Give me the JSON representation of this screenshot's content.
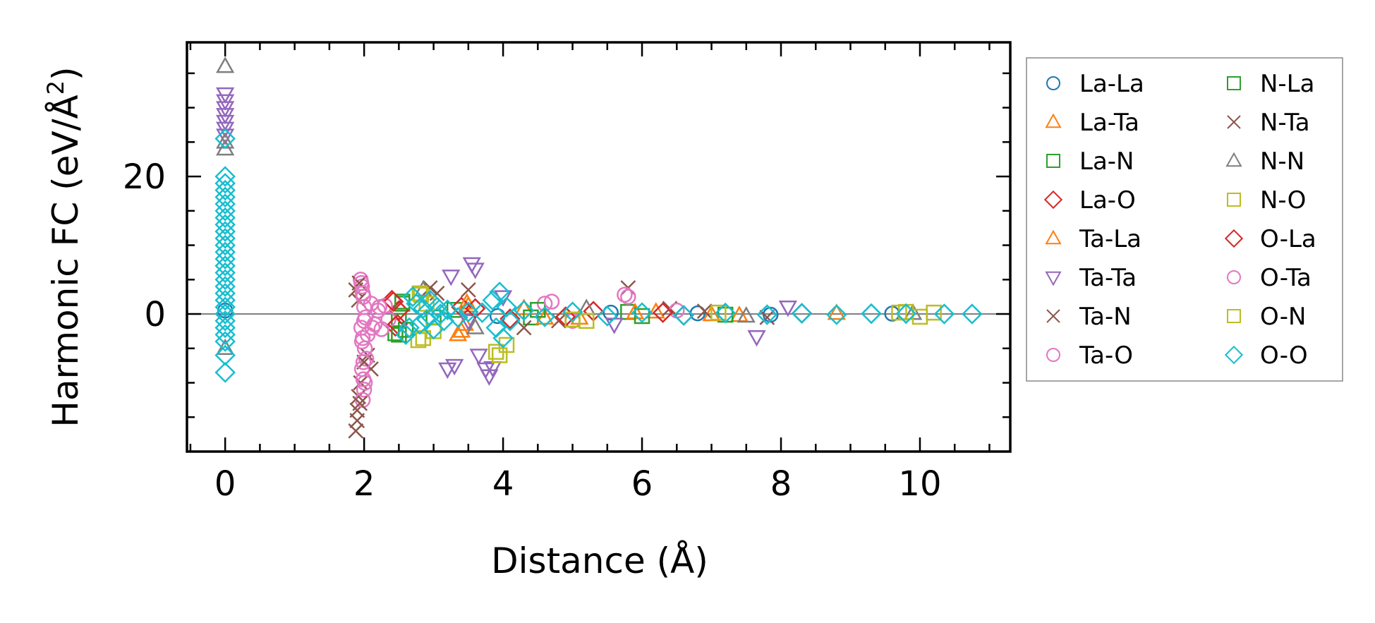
{
  "chart_data": {
    "type": "scatter",
    "title": "",
    "xlabel": "Distance (Å)",
    "ylabel_prefix": "Harmonic FC (eV/Å",
    "ylabel_exp": "2",
    "ylabel_suffix": ")",
    "xlim": [
      -0.55,
      11.3
    ],
    "ylim": [
      -20,
      39.5
    ],
    "xticks": [
      0,
      2,
      4,
      6,
      8,
      10
    ],
    "yticks": [
      0,
      20
    ],
    "xtick_labels": [
      "0",
      "2",
      "4",
      "6",
      "8",
      "10"
    ],
    "ytick_labels": [
      "0",
      "20"
    ],
    "xminor_step": 0.5,
    "yminor_step": 5,
    "hline_y": 0,
    "legend_position": "outside-right",
    "legend_columns": 2,
    "series": [
      {
        "name": "La-La",
        "marker": "circle",
        "color": "#1f77b4",
        "points": [
          [
            0,
            0.5
          ],
          [
            3.92,
            -0.3
          ],
          [
            5.55,
            0.2
          ],
          [
            6.8,
            0.1
          ],
          [
            7.85,
            -0.1
          ],
          [
            9.6,
            0.05
          ]
        ]
      },
      {
        "name": "La-Ta",
        "marker": "triangle-up",
        "color": "#ff7f0e",
        "points": [
          [
            3.35,
            -3.0
          ],
          [
            3.45,
            -1.5
          ],
          [
            3.5,
            1.2
          ],
          [
            4.3,
            0.8
          ],
          [
            5.1,
            -0.6
          ],
          [
            6.2,
            0.3
          ],
          [
            7.4,
            -0.2
          ],
          [
            8.8,
            0.1
          ]
        ]
      },
      {
        "name": "La-N",
        "marker": "square",
        "color": "#2ca02c",
        "points": [
          [
            2.45,
            -2.8
          ],
          [
            2.5,
            -1.0
          ],
          [
            2.55,
            1.5
          ],
          [
            2.6,
            -2.3
          ],
          [
            3.3,
            0.6
          ],
          [
            4.4,
            -0.5
          ],
          [
            5.8,
            0.3
          ],
          [
            7.2,
            -0.1
          ]
        ]
      },
      {
        "name": "La-O",
        "marker": "diamond",
        "color": "#d62728",
        "points": [
          [
            2.4,
            2.0
          ],
          [
            2.45,
            -1.8
          ],
          [
            2.5,
            0.5
          ],
          [
            3.4,
            1.0
          ],
          [
            4.1,
            -0.7
          ],
          [
            5.3,
            0.4
          ],
          [
            6.6,
            -0.2
          ],
          [
            8.3,
            0.1
          ]
        ]
      },
      {
        "name": "Ta-La",
        "marker": "triangle-up",
        "color": "#ff7f0e",
        "points": [
          [
            3.4,
            -2.5
          ],
          [
            3.48,
            1.6
          ],
          [
            4.6,
            -0.6
          ],
          [
            5.9,
            0.2
          ],
          [
            7.0,
            -0.1
          ]
        ]
      },
      {
        "name": "Ta-Ta",
        "marker": "triangle-down",
        "color": "#9467bd",
        "points": [
          [
            0,
            32
          ],
          [
            0,
            31
          ],
          [
            0,
            30
          ],
          [
            0,
            29
          ],
          [
            0,
            28
          ],
          [
            0,
            27
          ],
          [
            0,
            26
          ],
          [
            3.25,
            5.5
          ],
          [
            3.2,
            -8.0
          ],
          [
            3.3,
            -7.5
          ],
          [
            3.5,
            -1.0
          ],
          [
            3.55,
            7.3
          ],
          [
            3.6,
            6.5
          ],
          [
            3.65,
            -6.0
          ],
          [
            3.75,
            -8.0
          ],
          [
            3.8,
            -9.0
          ],
          [
            3.85,
            -7.8
          ],
          [
            4.0,
            2.5
          ],
          [
            5.6,
            -1.5
          ],
          [
            7.65,
            -3.3
          ],
          [
            8.1,
            1.0
          ]
        ]
      },
      {
        "name": "Ta-N",
        "marker": "x",
        "color": "#8c564b",
        "points": [
          [
            1.88,
            -17.0
          ],
          [
            1.9,
            -14.0
          ],
          [
            1.92,
            -12.0
          ],
          [
            1.95,
            -10.0
          ],
          [
            1.88,
            3.5
          ],
          [
            1.92,
            2.0
          ],
          [
            2.05,
            -6.0
          ],
          [
            2.1,
            -8.0
          ],
          [
            2.95,
            3.8
          ],
          [
            3.5,
            3.5
          ],
          [
            4.3,
            -2.0
          ],
          [
            5.8,
            3.8
          ],
          [
            6.4,
            0.8
          ],
          [
            7.8,
            -0.5
          ]
        ]
      },
      {
        "name": "Ta-O",
        "marker": "circle",
        "color": "#e377c2",
        "points": [
          [
            1.95,
            5.0
          ],
          [
            1.97,
            4.0
          ],
          [
            1.99,
            2.5
          ],
          [
            2.0,
            1.0
          ],
          [
            2.02,
            -0.5
          ],
          [
            1.96,
            -2.0
          ],
          [
            1.98,
            -3.5
          ],
          [
            2.01,
            -5.0
          ],
          [
            2.03,
            -6.5
          ],
          [
            1.97,
            -8.0
          ],
          [
            1.99,
            -9.5
          ],
          [
            2.0,
            -11.0
          ],
          [
            1.98,
            -12.5
          ],
          [
            2.05,
            -3.0
          ],
          [
            2.1,
            1.5
          ],
          [
            2.15,
            -1.5
          ],
          [
            2.2,
            0.5
          ],
          [
            2.25,
            -2.2
          ],
          [
            2.3,
            1.2
          ],
          [
            2.35,
            -0.8
          ],
          [
            4.6,
            1.5
          ],
          [
            5.0,
            -1.0
          ],
          [
            5.75,
            2.8
          ],
          [
            6.5,
            0.5
          ]
        ]
      },
      {
        "name": "N-La",
        "marker": "square",
        "color": "#2ca02c",
        "points": [
          [
            2.5,
            -3.0
          ],
          [
            2.55,
            1.8
          ],
          [
            3.0,
            -0.5
          ],
          [
            4.5,
            0.6
          ],
          [
            6.0,
            -0.3
          ]
        ]
      },
      {
        "name": "N-Ta",
        "marker": "x",
        "color": "#8c564b",
        "points": [
          [
            1.9,
            -15.5
          ],
          [
            1.94,
            -13.0
          ],
          [
            1.93,
            4.5
          ],
          [
            2.0,
            -7.0
          ],
          [
            3.05,
            3.0
          ],
          [
            4.8,
            -1.0
          ],
          [
            6.9,
            0.4
          ]
        ]
      },
      {
        "name": "N-N",
        "marker": "triangle-up",
        "color": "#7f7f7f",
        "points": [
          [
            0,
            36
          ],
          [
            0,
            25
          ],
          [
            0,
            24
          ],
          [
            0,
            -5
          ],
          [
            2.85,
            3.5
          ],
          [
            3.6,
            -2.0
          ],
          [
            5.2,
            0.8
          ],
          [
            7.5,
            -0.3
          ],
          [
            9.9,
            0.1
          ]
        ]
      },
      {
        "name": "N-O",
        "marker": "square",
        "color": "#bcbd22",
        "points": [
          [
            2.8,
            3.0
          ],
          [
            2.85,
            -3.5
          ],
          [
            2.9,
            1.5
          ],
          [
            3.0,
            -2.5
          ],
          [
            3.95,
            -6.0
          ],
          [
            4.05,
            -4.5
          ],
          [
            5.2,
            -1.0
          ],
          [
            7.1,
            0.2
          ],
          [
            9.8,
            0.3
          ],
          [
            10.0,
            -0.4
          ],
          [
            10.2,
            0.2
          ]
        ]
      },
      {
        "name": "O-La",
        "marker": "diamond",
        "color": "#d62728",
        "points": [
          [
            2.42,
            1.8
          ],
          [
            2.48,
            -1.5
          ],
          [
            3.6,
            0.8
          ],
          [
            4.9,
            -0.4
          ],
          [
            6.3,
            0.2
          ]
        ]
      },
      {
        "name": "O-Ta",
        "marker": "circle",
        "color": "#e377c2",
        "points": [
          [
            1.96,
            4.5
          ],
          [
            1.98,
            3.0
          ],
          [
            2.0,
            -1.0
          ],
          [
            1.97,
            -4.0
          ],
          [
            1.99,
            -7.0
          ],
          [
            2.01,
            -10.0
          ],
          [
            2.12,
            -2.0
          ],
          [
            2.22,
            1.0
          ],
          [
            4.7,
            1.8
          ],
          [
            5.8,
            2.5
          ]
        ]
      },
      {
        "name": "O-N",
        "marker": "square",
        "color": "#bcbd22",
        "points": [
          [
            2.78,
            -3.8
          ],
          [
            2.82,
            2.8
          ],
          [
            3.9,
            -5.5
          ],
          [
            5.0,
            -0.8
          ],
          [
            9.7,
            0.2
          ]
        ]
      },
      {
        "name": "O-O",
        "marker": "diamond",
        "color": "#17becf",
        "points": [
          [
            0,
            20
          ],
          [
            0,
            19
          ],
          [
            0,
            18
          ],
          [
            0,
            17
          ],
          [
            0,
            16
          ],
          [
            0,
            15
          ],
          [
            0,
            14
          ],
          [
            0,
            13
          ],
          [
            0,
            12
          ],
          [
            0,
            11
          ],
          [
            0,
            10
          ],
          [
            0,
            9
          ],
          [
            0,
            8
          ],
          [
            0,
            7
          ],
          [
            0,
            6
          ],
          [
            0,
            5
          ],
          [
            0,
            4
          ],
          [
            0,
            3
          ],
          [
            0,
            2
          ],
          [
            0,
            1
          ],
          [
            0,
            0
          ],
          [
            0,
            -1
          ],
          [
            0,
            -2
          ],
          [
            0,
            -3
          ],
          [
            0,
            -4
          ],
          [
            0,
            -6
          ],
          [
            0,
            -8.5
          ],
          [
            0,
            25.5
          ],
          [
            2.6,
            -3.0
          ],
          [
            2.65,
            -2.0
          ],
          [
            2.7,
            2.5
          ],
          [
            2.75,
            1.5
          ],
          [
            2.8,
            -1.5
          ],
          [
            2.85,
            0.8
          ],
          [
            2.9,
            -0.8
          ],
          [
            2.95,
            2.0
          ],
          [
            3.0,
            -2.2
          ],
          [
            3.05,
            1.0
          ],
          [
            3.1,
            0.0
          ],
          [
            3.15,
            -1.0
          ],
          [
            3.2,
            0.6
          ],
          [
            3.35,
            -0.5
          ],
          [
            3.5,
            0.3
          ],
          [
            3.7,
            0.2
          ],
          [
            3.85,
            2.0
          ],
          [
            3.9,
            -2.0
          ],
          [
            3.95,
            3.2
          ],
          [
            4.0,
            -3.5
          ],
          [
            4.05,
            1.0
          ],
          [
            4.1,
            -1.0
          ],
          [
            4.3,
            0.5
          ],
          [
            4.6,
            -0.4
          ],
          [
            5.0,
            0.3
          ],
          [
            5.5,
            -0.3
          ],
          [
            6.0,
            0.2
          ],
          [
            6.6,
            -0.2
          ],
          [
            7.2,
            0.15
          ],
          [
            7.8,
            -0.1
          ],
          [
            8.3,
            0.1
          ],
          [
            8.8,
            -0.1
          ],
          [
            9.3,
            0.05
          ],
          [
            9.8,
            0.05
          ],
          [
            10.35,
            0.0
          ],
          [
            10.75,
            0.0
          ]
        ]
      }
    ]
  }
}
